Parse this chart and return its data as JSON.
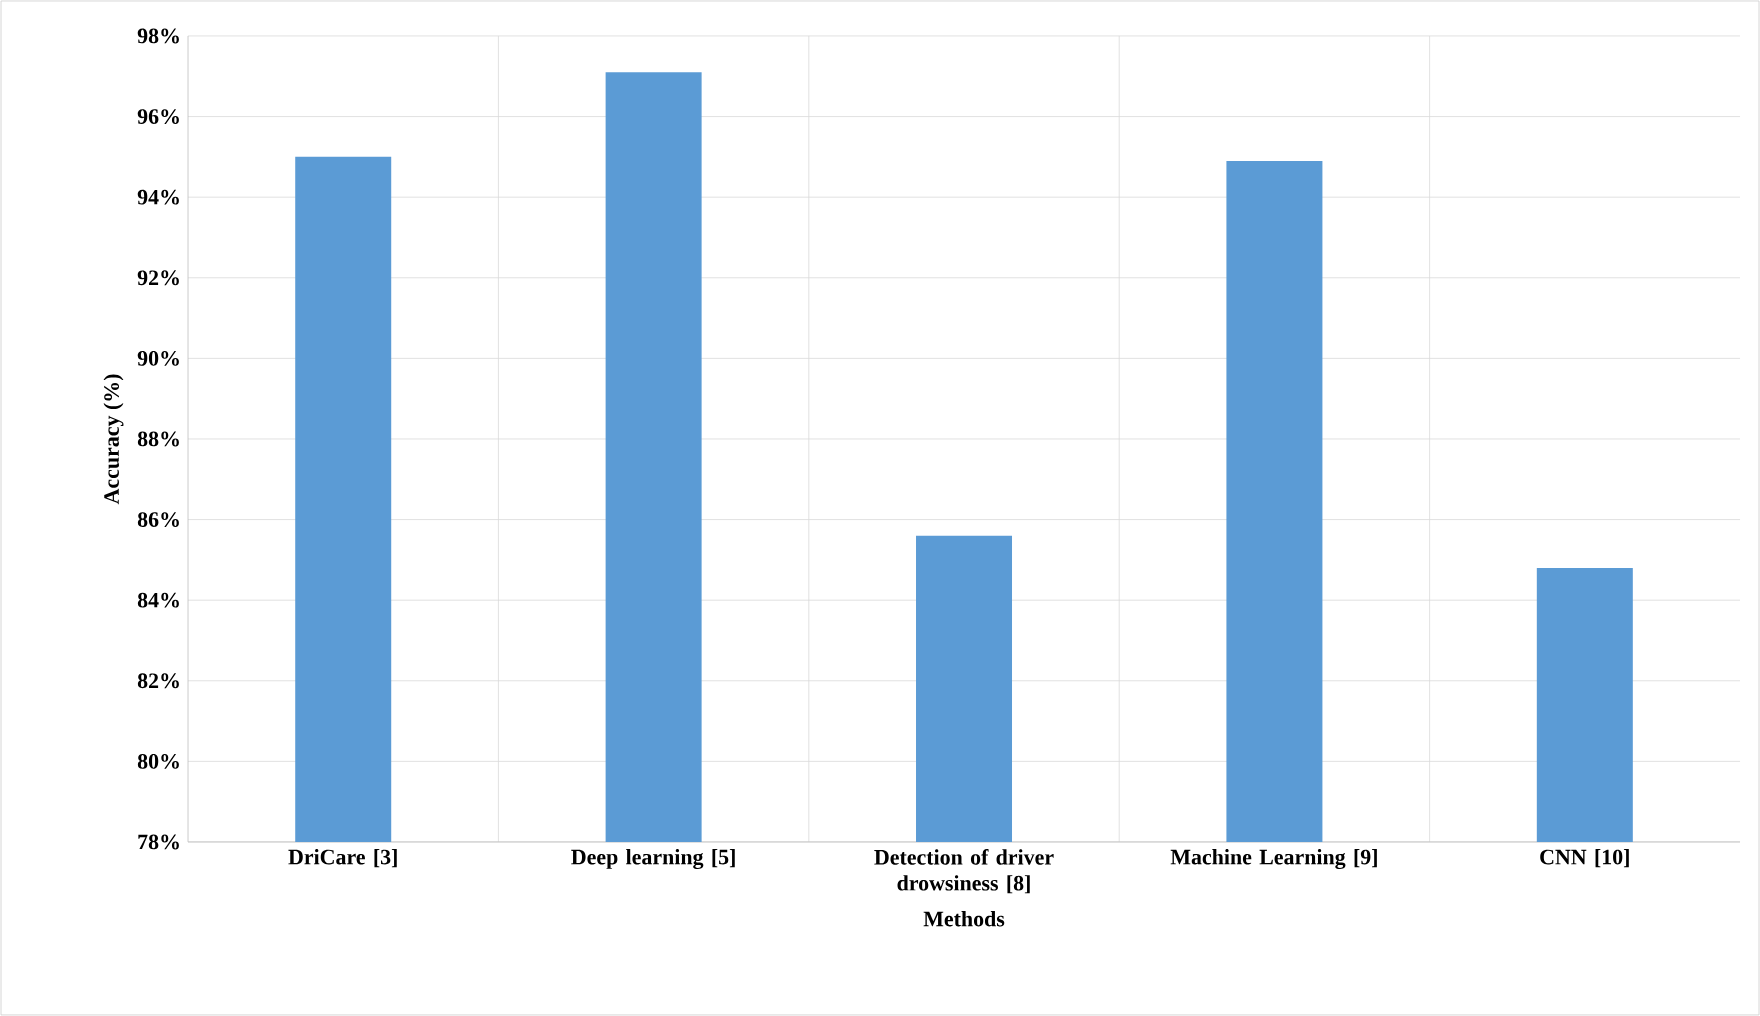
{
  "chart_data": {
    "type": "bar",
    "xlabel": "Methods",
    "ylabel": "Accuracy (%)",
    "categories": [
      "DriCare [3]",
      "Deep learning [5]",
      "Detection of driver drowsiness [8]",
      "Machine Learning [9]",
      "CNN [10]"
    ],
    "values": [
      95.0,
      97.1,
      85.6,
      94.9,
      84.8
    ],
    "color": "#5b9bd5",
    "ylim": [
      78,
      98
    ],
    "yticks": [
      {
        "value": 78,
        "label": "78%"
      },
      {
        "value": 80,
        "label": "80%"
      },
      {
        "value": 82,
        "label": "82%"
      },
      {
        "value": 84,
        "label": "84%"
      },
      {
        "value": 86,
        "label": "86%"
      },
      {
        "value": 88,
        "label": "88%"
      },
      {
        "value": 90,
        "label": "90%"
      },
      {
        "value": 92,
        "label": "92%"
      },
      {
        "value": 94,
        "label": "94%"
      },
      {
        "value": 96,
        "label": "96%"
      },
      {
        "value": 98,
        "label": "98%"
      }
    ],
    "grid": true
  }
}
